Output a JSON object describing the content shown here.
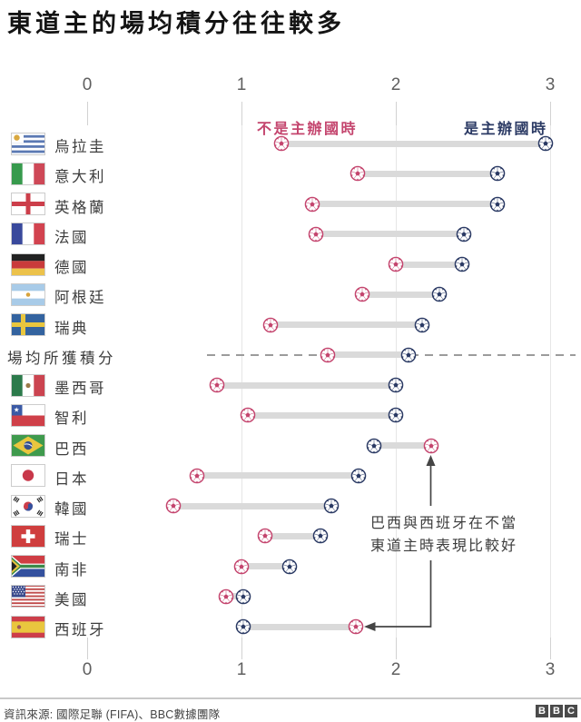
{
  "title": "東道主的場均積分往往較多",
  "legend": {
    "away": "不是主辦國時",
    "home": "是主辦國時"
  },
  "annotation": [
    "巴西與西班牙在不當",
    "東道主時表現比較好"
  ],
  "footer": {
    "source": "資訊來源: 國際足聯 (FIFA)、BBC數據團隊",
    "logo_letters": [
      "B",
      "B",
      "C"
    ]
  },
  "colors": {
    "away": "#c4456e",
    "home": "#2b3a64",
    "bar": "#dadada"
  },
  "chart_data": {
    "type": "dumbbell",
    "x_ticks": [
      0,
      1,
      2,
      3
    ],
    "xlim": [
      0,
      3
    ],
    "series_names": {
      "away": "不是主辦國時",
      "home": "是主辦國時"
    },
    "rows": [
      {
        "label": "烏拉圭",
        "flag": "uruguay",
        "away": 1.26,
        "home": 2.97
      },
      {
        "label": "意大利",
        "flag": "italy",
        "away": 1.75,
        "home": 2.66
      },
      {
        "label": "英格蘭",
        "flag": "england",
        "away": 1.46,
        "home": 2.66
      },
      {
        "label": "法國",
        "flag": "france",
        "away": 1.48,
        "home": 2.44
      },
      {
        "label": "德國",
        "flag": "germany",
        "away": 2.0,
        "home": 2.43
      },
      {
        "label": "阿根廷",
        "flag": "argentina",
        "away": 1.78,
        "home": 2.28
      },
      {
        "label": "瑞典",
        "flag": "sweden",
        "away": 1.19,
        "home": 2.17
      },
      {
        "label": "場均所獲積分",
        "flag": null,
        "away": 1.56,
        "home": 2.08,
        "reference": true
      },
      {
        "label": "墨西哥",
        "flag": "mexico",
        "away": 0.84,
        "home": 2.0
      },
      {
        "label": "智利",
        "flag": "chile",
        "away": 1.04,
        "home": 2.0
      },
      {
        "label": "巴西",
        "flag": "brazil",
        "away": 2.23,
        "home": 1.86
      },
      {
        "label": "日本",
        "flag": "japan",
        "away": 0.71,
        "home": 1.76
      },
      {
        "label": "韓國",
        "flag": "south-korea",
        "away": 0.56,
        "home": 1.58
      },
      {
        "label": "瑞士",
        "flag": "switzerland",
        "away": 1.15,
        "home": 1.51
      },
      {
        "label": "南非",
        "flag": "south-africa",
        "away": 1.0,
        "home": 1.31
      },
      {
        "label": "美國",
        "flag": "usa",
        "away": 0.9,
        "home": 1.01
      },
      {
        "label": "西班牙",
        "flag": "spain",
        "away": 1.74,
        "home": 1.01
      }
    ]
  }
}
